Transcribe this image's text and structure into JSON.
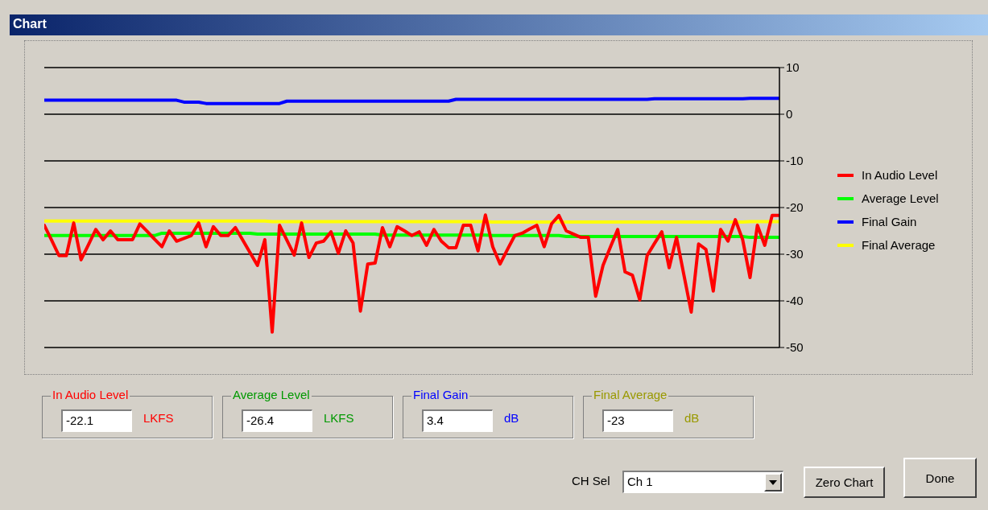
{
  "chart_data": {
    "type": "line",
    "title": "Chart",
    "categories": [
      null,
      null,
      null,
      null,
      null,
      null,
      null,
      null,
      null,
      null,
      null,
      null,
      null,
      null,
      null,
      null,
      null,
      null,
      null,
      null,
      null,
      null,
      null,
      null,
      null,
      null,
      null,
      null,
      null,
      null,
      null,
      null,
      null,
      null,
      null,
      null,
      null,
      null,
      null,
      null,
      null,
      null,
      null,
      null,
      null,
      null,
      null,
      null,
      null,
      null,
      null,
      null,
      null,
      null,
      null,
      null,
      null,
      null,
      null,
      null,
      null,
      null,
      null,
      null,
      null,
      null,
      null,
      null,
      null,
      null,
      null,
      null,
      null,
      null,
      null,
      null,
      null,
      null,
      null,
      null,
      null,
      null,
      null,
      null,
      null,
      null,
      null,
      null,
      null,
      null,
      null,
      null,
      null,
      null,
      null,
      null,
      null,
      null,
      null,
      null,
      null
    ],
    "series": [
      {
        "name": "In Audio Level",
        "color": "#ff0000",
        "values": [
          -23.8,
          -27,
          -30.3,
          -30.3,
          -23.3,
          -31.2,
          -28,
          -24.7,
          -26.9,
          -25,
          -26.9,
          -26.9,
          -26.9,
          -23.5,
          -25.1,
          -26.8,
          -28.4,
          -25,
          -27.2,
          -26.6,
          -26,
          -23.3,
          -28.4,
          -24.1,
          -26,
          -26,
          -24.3,
          -27,
          -29.7,
          -32.4,
          -26.9,
          -46.7,
          -23.8,
          -27,
          -30.2,
          -23.3,
          -30.7,
          -27.6,
          -27.2,
          -25.2,
          -29.8,
          -25,
          -27.6,
          -42.2,
          -32.1,
          -31.9,
          -24.3,
          -28.4,
          -24.1,
          -25,
          -26,
          -25.2,
          -28.1,
          -24.7,
          -27.2,
          -28.6,
          -28.6,
          -23.8,
          -23.8,
          -29.3,
          -21.6,
          -28.4,
          -32.1,
          -29,
          -26,
          -25.5,
          -24.6,
          -23.8,
          -28.4,
          -23.5,
          -21.7,
          -25,
          -25.7,
          -26.4,
          -26.4,
          -39,
          -32.4,
          -28.5,
          -24.7,
          -33.8,
          -34.5,
          -39.8,
          -30.3,
          -27.7,
          -25.2,
          -32.9,
          -26.4,
          -34.4,
          -42.4,
          -27.8,
          -29,
          -37.9,
          -24.7,
          -27.2,
          -22.6,
          -26.9,
          -35,
          -23.8,
          -28.1,
          -21.7,
          -21.7
        ]
      },
      {
        "name": "Average Level",
        "color": "#00ff00",
        "values": [
          -26,
          -26,
          -26,
          -26,
          -26,
          -26,
          -26,
          -26,
          -26,
          -26,
          -26,
          -26,
          -26,
          -26,
          -26,
          -26,
          -25.5,
          -25.5,
          -25.5,
          -25.5,
          -25.5,
          -25.5,
          -25.5,
          -25.5,
          -25.5,
          -25.5,
          -25.5,
          -25.5,
          -25.5,
          -25.7,
          -25.7,
          -25.7,
          -25.7,
          -25.7,
          -25.7,
          -25.7,
          -25.7,
          -25.7,
          -25.7,
          -25.7,
          -25.7,
          -25.7,
          -25.7,
          -25.7,
          -25.7,
          -25.7,
          -25.9,
          -25.9,
          -25.9,
          -25.9,
          -25.9,
          -25.9,
          -25.9,
          -25.9,
          -25.9,
          -25.9,
          -25.9,
          -25.9,
          -25.9,
          -25.9,
          -25.9,
          -26,
          -26,
          -26,
          -26,
          -26,
          -26,
          -26,
          -26,
          -26,
          -26,
          -26.2,
          -26.2,
          -26.2,
          -26.2,
          -26.2,
          -26.2,
          -26.2,
          -26.2,
          -26.2,
          -26.2,
          -26.2,
          -26.2,
          -26.2,
          -26.2,
          -26.2,
          -26.2,
          -26.2,
          -26.2,
          -26.2,
          -26.2,
          -26.2,
          -26.2,
          -26.2,
          -26.2,
          -26.2,
          -26.4,
          -26.4,
          -26.4,
          -26.4,
          -26.4
        ]
      },
      {
        "name": "Final Gain",
        "color": "#0000ff",
        "values": [
          3,
          3,
          3,
          3,
          3,
          3,
          3,
          3,
          3,
          3,
          3,
          3,
          3,
          3,
          3,
          3,
          3,
          3,
          3,
          2.6,
          2.6,
          2.6,
          2.3,
          2.3,
          2.3,
          2.3,
          2.3,
          2.3,
          2.3,
          2.3,
          2.3,
          2.3,
          2.3,
          2.8,
          2.8,
          2.8,
          2.8,
          2.8,
          2.8,
          2.8,
          2.8,
          2.8,
          2.8,
          2.8,
          2.8,
          2.8,
          2.8,
          2.8,
          2.8,
          2.8,
          2.8,
          2.8,
          2.8,
          2.8,
          2.8,
          2.8,
          3.2,
          3.2,
          3.2,
          3.2,
          3.2,
          3.2,
          3.2,
          3.2,
          3.2,
          3.2,
          3.2,
          3.2,
          3.2,
          3.2,
          3.2,
          3.2,
          3.2,
          3.2,
          3.2,
          3.2,
          3.2,
          3.2,
          3.2,
          3.2,
          3.2,
          3.2,
          3.2,
          3.3,
          3.3,
          3.3,
          3.3,
          3.3,
          3.3,
          3.3,
          3.3,
          3.3,
          3.3,
          3.3,
          3.3,
          3.3,
          3.4,
          3.4,
          3.4,
          3.4,
          3.4
        ]
      },
      {
        "name": "Final Average",
        "color": "#ffff00",
        "values": [
          -22.9,
          -22.9,
          -22.9,
          -22.9,
          -22.9,
          -22.9,
          -22.9,
          -22.9,
          -22.9,
          -22.9,
          -22.9,
          -22.9,
          -22.9,
          -22.9,
          -22.9,
          -22.9,
          -22.9,
          -22.9,
          -22.9,
          -22.9,
          -22.9,
          -22.9,
          -22.9,
          -22.9,
          -22.9,
          -22.9,
          -22.9,
          -22.9,
          -22.9,
          -22.9,
          -22.9,
          -23,
          -23,
          -23,
          -23,
          -23,
          -23,
          -23,
          -23,
          -23,
          -23,
          -23,
          -23,
          -23,
          -23,
          -23,
          -23,
          -23,
          -23,
          -23,
          -23,
          -23,
          -23,
          -23,
          -23,
          -23,
          -23,
          -23,
          -23,
          -23,
          -23,
          -23.1,
          -23.1,
          -23.1,
          -23.1,
          -23.1,
          -23.1,
          -23.1,
          -23.1,
          -23.1,
          -23.1,
          -23.1,
          -23.1,
          -23.1,
          -23.1,
          -23.1,
          -23.1,
          -23.1,
          -23.1,
          -23.1,
          -23.1,
          -23.1,
          -23.1,
          -23.1,
          -23.1,
          -23.1,
          -23.1,
          -23.1,
          -23.1,
          -23.1,
          -23.1,
          -23.1,
          -23.1,
          -23.1,
          -23.1,
          -23.1,
          -23,
          -23,
          -23,
          -23,
          -23
        ]
      }
    ],
    "ylim": [
      -50,
      10
    ],
    "yticks": [
      10,
      0,
      -10,
      -20,
      -30,
      -40,
      -50
    ],
    "grid": "y",
    "legend": "right",
    "tick_labels": "y",
    "annotations": [
      "In Audio Level",
      "-22.1",
      "LKFS",
      "Average Level",
      "-26.4",
      "LKFS",
      "Final Gain",
      "3.4",
      "dB",
      "Final Average",
      "-23",
      "dB",
      "CH Sel",
      "Ch 1",
      "Zero Chart",
      "Done"
    ]
  }
}
